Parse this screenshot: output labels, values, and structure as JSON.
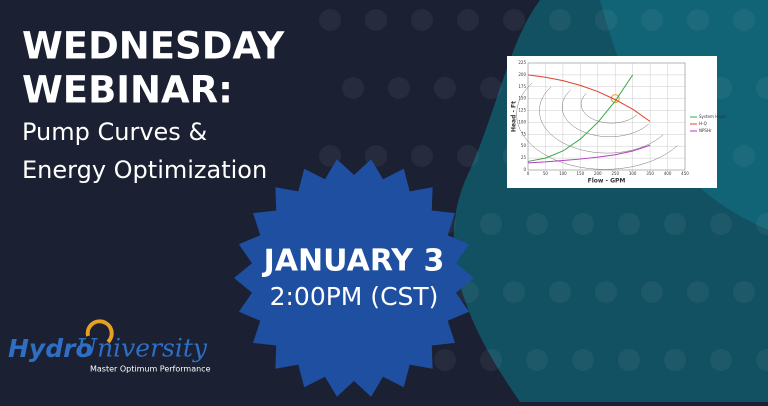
{
  "header": {
    "title_lines": [
      "WEDNESDAY",
      "WEBINAR:"
    ],
    "subtitle_lines": [
      "Pump Curves &",
      "Energy Optimization"
    ]
  },
  "event": {
    "date": "JANUARY 3",
    "time": "2:00PM (CST)"
  },
  "logo": {
    "brand_a": "Hydro",
    "brand_b": "University",
    "tagline": "Master Optimum Performance"
  },
  "chart_data": {
    "type": "line",
    "x_label": "Flow - GPM",
    "y_label": "Head - Ft",
    "x": [
      0,
      50,
      100,
      150,
      200,
      250,
      300,
      350
    ],
    "series": [
      {
        "name": "System Head",
        "color": "#3aa84a",
        "values": [
          18,
          25,
          40,
          65,
          100,
          145,
          200,
          null
        ]
      },
      {
        "name": "H-Q",
        "color": "#e0402a",
        "values": [
          200,
          195,
          188,
          178,
          165,
          148,
          128,
          102
        ]
      },
      {
        "name": "NPSHr",
        "color": "#b63cc0",
        "values": [
          15,
          17,
          20,
          23,
          27,
          32,
          40,
          52
        ]
      }
    ],
    "xlim": [
      0,
      450
    ],
    "xticks": [
      0,
      50,
      100,
      150,
      200,
      250,
      300,
      350,
      400,
      450
    ],
    "ylim": [
      0,
      225
    ],
    "yticks": [
      0,
      25,
      50,
      75,
      100,
      125,
      150,
      175,
      200,
      225
    ],
    "grid": true
  }
}
